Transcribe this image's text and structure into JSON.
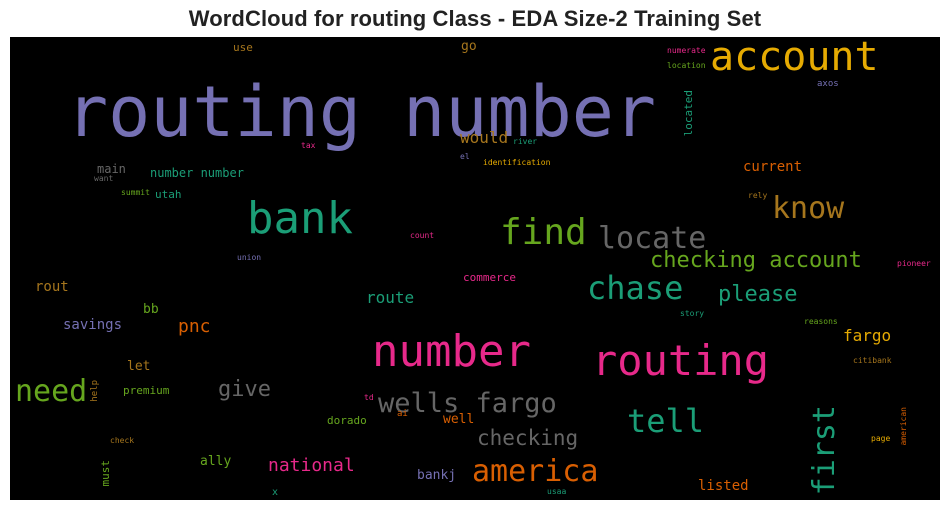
{
  "chart_data": {
    "type": "wordcloud",
    "title": "WordCloud for routing Class - EDA Size-2 Training Set",
    "background": "#000000",
    "colormap": "Dark2",
    "words": [
      {
        "text": "routing number",
        "color": "#7570b3",
        "weight": 100
      },
      {
        "text": "account",
        "color": "#e6ab02",
        "weight": 60
      },
      {
        "text": "bank",
        "color": "#1b9e77",
        "weight": 72
      },
      {
        "text": "find",
        "color": "#66a61e",
        "weight": 52
      },
      {
        "text": "locate",
        "color": "#666666",
        "weight": 48
      },
      {
        "text": "know",
        "color": "#a6761d",
        "weight": 44
      },
      {
        "text": "chase",
        "color": "#1b9e77",
        "weight": 52
      },
      {
        "text": "checking account",
        "color": "#66a61e",
        "weight": 38
      },
      {
        "text": "please",
        "color": "#1b9e77",
        "weight": 36
      },
      {
        "text": "number",
        "color": "#e7298a",
        "weight": 70
      },
      {
        "text": "routing",
        "color": "#e7298a",
        "weight": 72
      },
      {
        "text": "need",
        "color": "#66a61e",
        "weight": 46
      },
      {
        "text": "wells fargo",
        "color": "#666666",
        "weight": 46
      },
      {
        "text": "tell",
        "color": "#1b9e77",
        "weight": 52
      },
      {
        "text": "first",
        "color": "#1b9e77",
        "weight": 44
      },
      {
        "text": "america",
        "color": "#d95f02",
        "weight": 50
      },
      {
        "text": "checking",
        "color": "#666666",
        "weight": 34
      },
      {
        "text": "give",
        "color": "#666666",
        "weight": 36
      },
      {
        "text": "national",
        "color": "#e7298a",
        "weight": 30
      },
      {
        "text": "pnc",
        "color": "#d95f02",
        "weight": 32
      },
      {
        "text": "fargo",
        "color": "#e6ab02",
        "weight": 26
      },
      {
        "text": "route",
        "color": "#1b9e77",
        "weight": 26
      },
      {
        "text": "would",
        "color": "#a6761d",
        "weight": 26
      },
      {
        "text": "current",
        "color": "#d95f02",
        "weight": 22
      },
      {
        "text": "savings",
        "color": "#7570b3",
        "weight": 22
      },
      {
        "text": "number number",
        "color": "#1b9e77",
        "weight": 20
      },
      {
        "text": "main",
        "color": "#666666",
        "weight": 20
      },
      {
        "text": "utah",
        "color": "#1b9e77",
        "weight": 18
      },
      {
        "text": "rout",
        "color": "#a6761d",
        "weight": 20
      },
      {
        "text": "bb",
        "color": "#66a61e",
        "weight": 20
      },
      {
        "text": "let",
        "color": "#a6761d",
        "weight": 20
      },
      {
        "text": "premium",
        "color": "#66a61e",
        "weight": 18
      },
      {
        "text": "ally",
        "color": "#66a61e",
        "weight": 20
      },
      {
        "text": "must",
        "color": "#66a61e",
        "weight": 18
      },
      {
        "text": "bankj",
        "color": "#7570b3",
        "weight": 20
      },
      {
        "text": "listed",
        "color": "#d95f02",
        "weight": 20
      },
      {
        "text": "well",
        "color": "#d95f02",
        "weight": 20
      },
      {
        "text": "dorado",
        "color": "#66a61e",
        "weight": 18
      },
      {
        "text": "go",
        "color": "#a6761d",
        "weight": 20
      },
      {
        "text": "use",
        "color": "#a6761d",
        "weight": 16
      },
      {
        "text": "commerce",
        "color": "#e7298a",
        "weight": 16
      },
      {
        "text": "located",
        "color": "#1b9e77",
        "weight": 16
      },
      {
        "text": "axos",
        "color": "#7570b3",
        "weight": 14
      },
      {
        "text": "numerate",
        "color": "#e7298a",
        "weight": 13
      },
      {
        "text": "location",
        "color": "#66a61e",
        "weight": 13
      },
      {
        "text": "river",
        "color": "#1b9e77",
        "weight": 13
      },
      {
        "text": "tax",
        "color": "#e7298a",
        "weight": 13
      },
      {
        "text": "el",
        "color": "#7570b3",
        "weight": 13
      },
      {
        "text": "identification",
        "color": "#e6ab02",
        "weight": 13
      },
      {
        "text": "want",
        "color": "#666666",
        "weight": 12
      },
      {
        "text": "summit",
        "color": "#66a61e",
        "weight": 12
      },
      {
        "text": "rely",
        "color": "#a6761d",
        "weight": 12
      },
      {
        "text": "count",
        "color": "#e7298a",
        "weight": 12
      },
      {
        "text": "union",
        "color": "#7570b3",
        "weight": 12
      },
      {
        "text": "pioneer",
        "color": "#e7298a",
        "weight": 13
      },
      {
        "text": "story",
        "color": "#1b9e77",
        "weight": 12
      },
      {
        "text": "reasons",
        "color": "#66a61e",
        "weight": 12
      },
      {
        "text": "citibank",
        "color": "#a6761d",
        "weight": 12
      },
      {
        "text": "help",
        "color": "#a6761d",
        "weight": 12
      },
      {
        "text": "td",
        "color": "#e7298a",
        "weight": 12
      },
      {
        "text": "ai",
        "color": "#d95f02",
        "weight": 13
      },
      {
        "text": "check",
        "color": "#a6761d",
        "weight": 12
      },
      {
        "text": "american",
        "color": "#d95f02",
        "weight": 12
      },
      {
        "text": "page",
        "color": "#e6ab02",
        "weight": 12
      },
      {
        "text": "x",
        "color": "#1b9e77",
        "weight": 12
      },
      {
        "text": "usaa",
        "color": "#1b9e77",
        "weight": 12
      }
    ]
  }
}
